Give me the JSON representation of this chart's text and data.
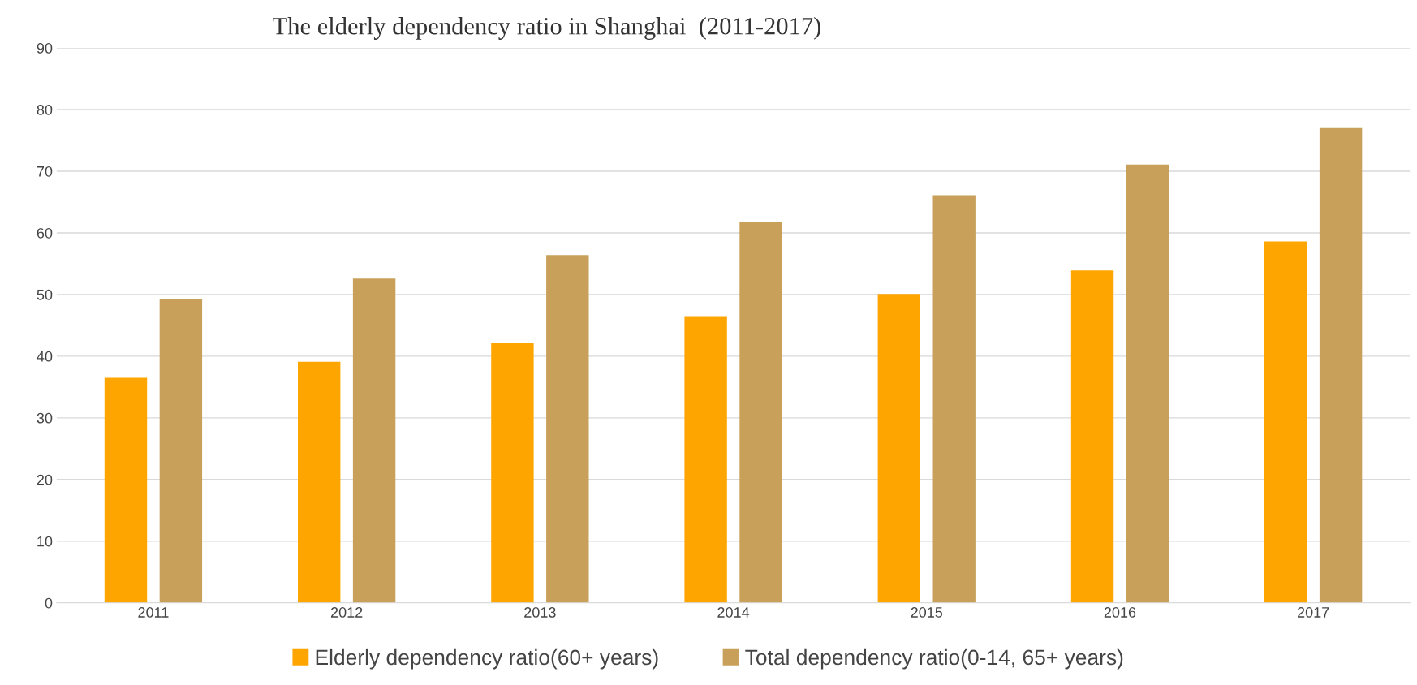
{
  "chart_data": {
    "type": "bar",
    "title": "The elderly dependency ratio in Shanghai  (2011-2017)",
    "categories": [
      "2011",
      "2012",
      "2013",
      "2014",
      "2015",
      "2016",
      "2017"
    ],
    "series": [
      {
        "name": "Elderly dependency ratio(60+ years)",
        "color": "#ffa500",
        "values": [
          36.5,
          39.1,
          42.2,
          46.5,
          50.1,
          53.9,
          58.6
        ]
      },
      {
        "name": "Total dependency ratio(0-14, 65+ years)",
        "color": "#c8a05a",
        "values": [
          49.3,
          52.6,
          56.4,
          61.7,
          66.1,
          71.1,
          77.0
        ]
      }
    ],
    "ylim": [
      0,
      90
    ],
    "yticks": [
      0,
      10,
      20,
      30,
      40,
      50,
      60,
      70,
      80,
      90
    ],
    "grid": "y",
    "legend": "bottom"
  }
}
